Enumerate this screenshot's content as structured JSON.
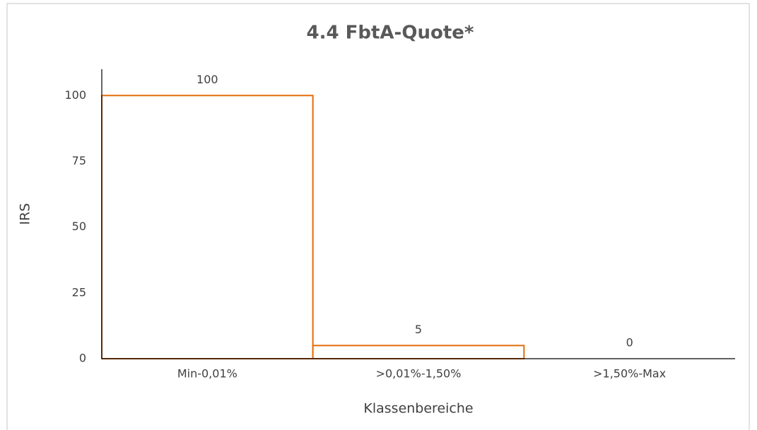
{
  "chart_data": {
    "type": "bar",
    "title": "4.4 FbtA-Quote*",
    "categories": [
      "Min-0,01%",
      ">0,01%-1,50%",
      ">1,50%-Max"
    ],
    "values": [
      100,
      5,
      0
    ],
    "color": "#e46c0a",
    "xlabel": "Klassenbereiche",
    "ylabel": "IRS",
    "ylim": [
      0,
      110
    ],
    "yticks": [
      0,
      25,
      50,
      75,
      100
    ],
    "grid": false
  }
}
